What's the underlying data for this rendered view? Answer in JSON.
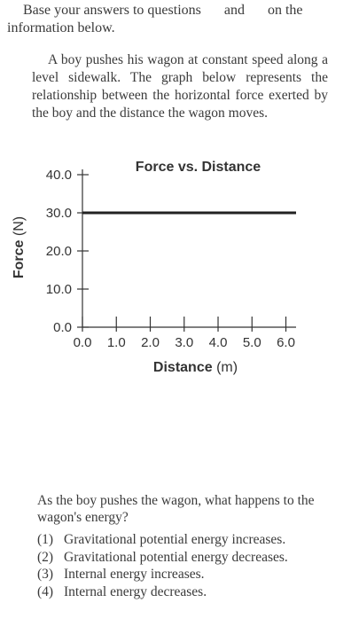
{
  "intro": {
    "part1": "Base your answers to questions",
    "part2": "and",
    "part3": "on the information below."
  },
  "passage": "A boy pushes his wagon at constant speed along a level sidewalk. The graph below represents the relationship between the horizontal force exerted by the boy and the distance the wagon moves.",
  "chart_data": {
    "type": "line",
    "title": "Force vs. Distance",
    "xlabel": "Distance (m)",
    "ylabel": "Force (N)",
    "x": [
      0.0,
      6.3
    ],
    "series": [
      {
        "values": [
          30.0,
          30.0
        ]
      }
    ],
    "xlim": [
      0.0,
      6.3
    ],
    "ylim": [
      0.0,
      40.0
    ],
    "xticks": [
      0,
      1,
      2,
      3,
      4,
      5,
      6
    ],
    "xtick_labels": [
      "0.0",
      "1.0",
      "2.0",
      "3.0",
      "4.0",
      "5.0",
      "6.0"
    ],
    "yticks": [
      0,
      10,
      20,
      30,
      40
    ],
    "ytick_labels": [
      "0.0",
      "10.0",
      "20.0",
      "30.0",
      "40.0"
    ],
    "grid": false,
    "line_color": "#222222"
  },
  "question": {
    "stem": "As the boy pushes the wagon, what happens to the wagon's energy?",
    "choices": [
      {
        "num": "(1)",
        "text": "Gravitational potential energy increases."
      },
      {
        "num": "(2)",
        "text": "Gravitational potential energy decreases."
      },
      {
        "num": "(3)",
        "text": "Internal energy increases."
      },
      {
        "num": "(4)",
        "text": "Internal energy decreases."
      }
    ]
  }
}
